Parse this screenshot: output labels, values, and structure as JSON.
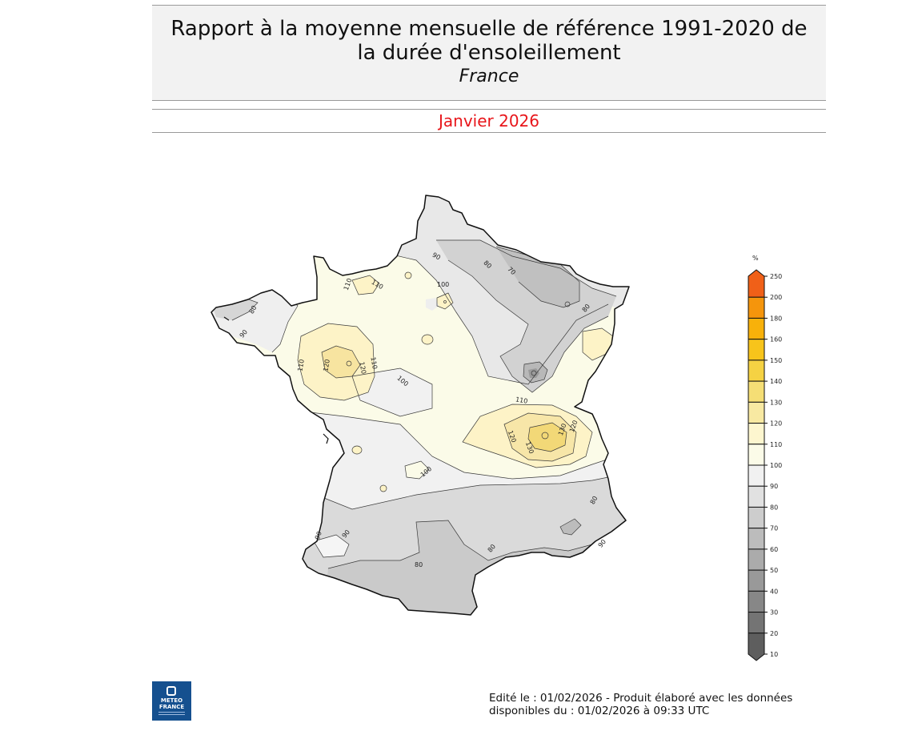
{
  "header": {
    "title_line1": "Rapport à la moyenne mensuelle de référence 1991-2020 de",
    "title_line2": "la durée d'ensoleillement",
    "subtitle": "France"
  },
  "period": "Janvier 2026",
  "footer": {
    "line1": "Edité le : 01/02/2026 - Produit élaboré avec les données",
    "line2": "disponibles du : 01/02/2026 à 09:33 UTC"
  },
  "logo": {
    "line1": "METEO",
    "line2": "FRANCE"
  },
  "legend": {
    "unit": "%",
    "classes": [
      {
        "value": "250",
        "color": "#f06018"
      },
      {
        "value": "200",
        "color": "#f27a10"
      },
      {
        "value": "180",
        "color": "#f5950c"
      },
      {
        "value": "160",
        "color": "#f8b10a"
      },
      {
        "value": "150",
        "color": "#f7c41b"
      },
      {
        "value": "140",
        "color": "#f5d243"
      },
      {
        "value": "130",
        "color": "#f5de75"
      },
      {
        "value": "120",
        "color": "#f8e9a2"
      },
      {
        "value": "110",
        "color": "#fdf6cf"
      },
      {
        "value": "100",
        "color": "#fbfbe8"
      },
      {
        "value": "90",
        "color": "#f1f1f1"
      },
      {
        "value": "80",
        "color": "#e1e1e1"
      },
      {
        "value": "70",
        "color": "#cdcdcd"
      },
      {
        "value": "60",
        "color": "#bcbcbc"
      },
      {
        "value": "50",
        "color": "#ababab"
      },
      {
        "value": "40",
        "color": "#999999"
      },
      {
        "value": "30",
        "color": "#878787"
      },
      {
        "value": "20",
        "color": "#747474"
      },
      {
        "value": "10",
        "color": "#5e5e5e"
      }
    ]
  },
  "map_labels": [
    "110",
    "110",
    "100",
    "90",
    "80",
    "70",
    "80",
    "90",
    "80",
    "110",
    "120",
    "120",
    "110",
    "100",
    "110",
    "120",
    "130",
    "130",
    "120",
    "100",
    "90",
    "90",
    "80",
    "80",
    "80",
    "90"
  ]
}
